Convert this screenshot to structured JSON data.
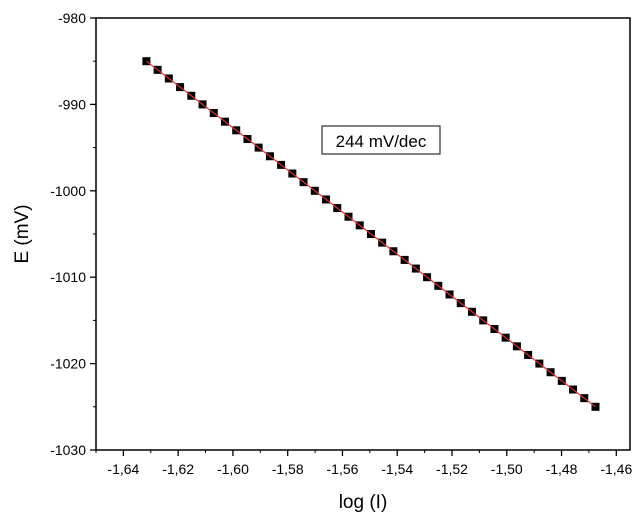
{
  "chart_data": {
    "type": "scatter",
    "title": "",
    "xlabel": "log (I)",
    "ylabel": "E (mV)",
    "xlim": [
      -1.65,
      -1.455
    ],
    "ylim": [
      -1030,
      -980
    ],
    "x_ticks": [
      {
        "value": -1.64,
        "label": "-1,64"
      },
      {
        "value": -1.62,
        "label": "-1,62"
      },
      {
        "value": -1.6,
        "label": "-1,60"
      },
      {
        "value": -1.58,
        "label": "-1,58"
      },
      {
        "value": -1.56,
        "label": "-1,56"
      },
      {
        "value": -1.54,
        "label": "-1,54"
      },
      {
        "value": -1.52,
        "label": "-1,52"
      },
      {
        "value": -1.5,
        "label": "-1,50"
      },
      {
        "value": -1.48,
        "label": "-1,48"
      },
      {
        "value": -1.46,
        "label": "-1,46"
      }
    ],
    "y_ticks": [
      {
        "value": -980,
        "label": "-980"
      },
      {
        "value": -990,
        "label": "-990"
      },
      {
        "value": -1000,
        "label": "-1000"
      },
      {
        "value": -1010,
        "label": "-1010"
      },
      {
        "value": -1020,
        "label": "-1020"
      },
      {
        "value": -1030,
        "label": "-1030"
      }
    ],
    "grid": false,
    "annotation": "244 mV/dec",
    "series": [
      {
        "marker": "square",
        "color": "#000000",
        "x": [
          -1.6316,
          -1.6275,
          -1.6234,
          -1.6193,
          -1.6152,
          -1.6111,
          -1.607,
          -1.6029,
          -1.5988,
          -1.5947,
          -1.5906,
          -1.5865,
          -1.5824,
          -1.5783,
          -1.5742,
          -1.5701,
          -1.566,
          -1.5619,
          -1.5578,
          -1.5537,
          -1.5496,
          -1.5455,
          -1.5414,
          -1.5373,
          -1.5332,
          -1.5291,
          -1.525,
          -1.5209,
          -1.5168,
          -1.5127,
          -1.5086,
          -1.5045,
          -1.5004,
          -1.4963,
          -1.4922,
          -1.4881,
          -1.484,
          -1.4799,
          -1.4758,
          -1.4717,
          -1.4676
        ],
        "y": [
          -985,
          -986,
          -987,
          -988,
          -989,
          -990,
          -991,
          -992,
          -993,
          -994,
          -995,
          -996,
          -997,
          -998,
          -999,
          -1000,
          -1001,
          -1002,
          -1003,
          -1004,
          -1005,
          -1006,
          -1007,
          -1008,
          -1009,
          -1010,
          -1011,
          -1012,
          -1013,
          -1014,
          -1015,
          -1016,
          -1017,
          -1018,
          -1019,
          -1020,
          -1021,
          -1022,
          -1023,
          -1024,
          -1025
        ]
      }
    ],
    "fit_line": {
      "color": "#e03030",
      "x": [
        -1.6316,
        -1.4676
      ],
      "y": [
        -985,
        -1025
      ]
    }
  }
}
